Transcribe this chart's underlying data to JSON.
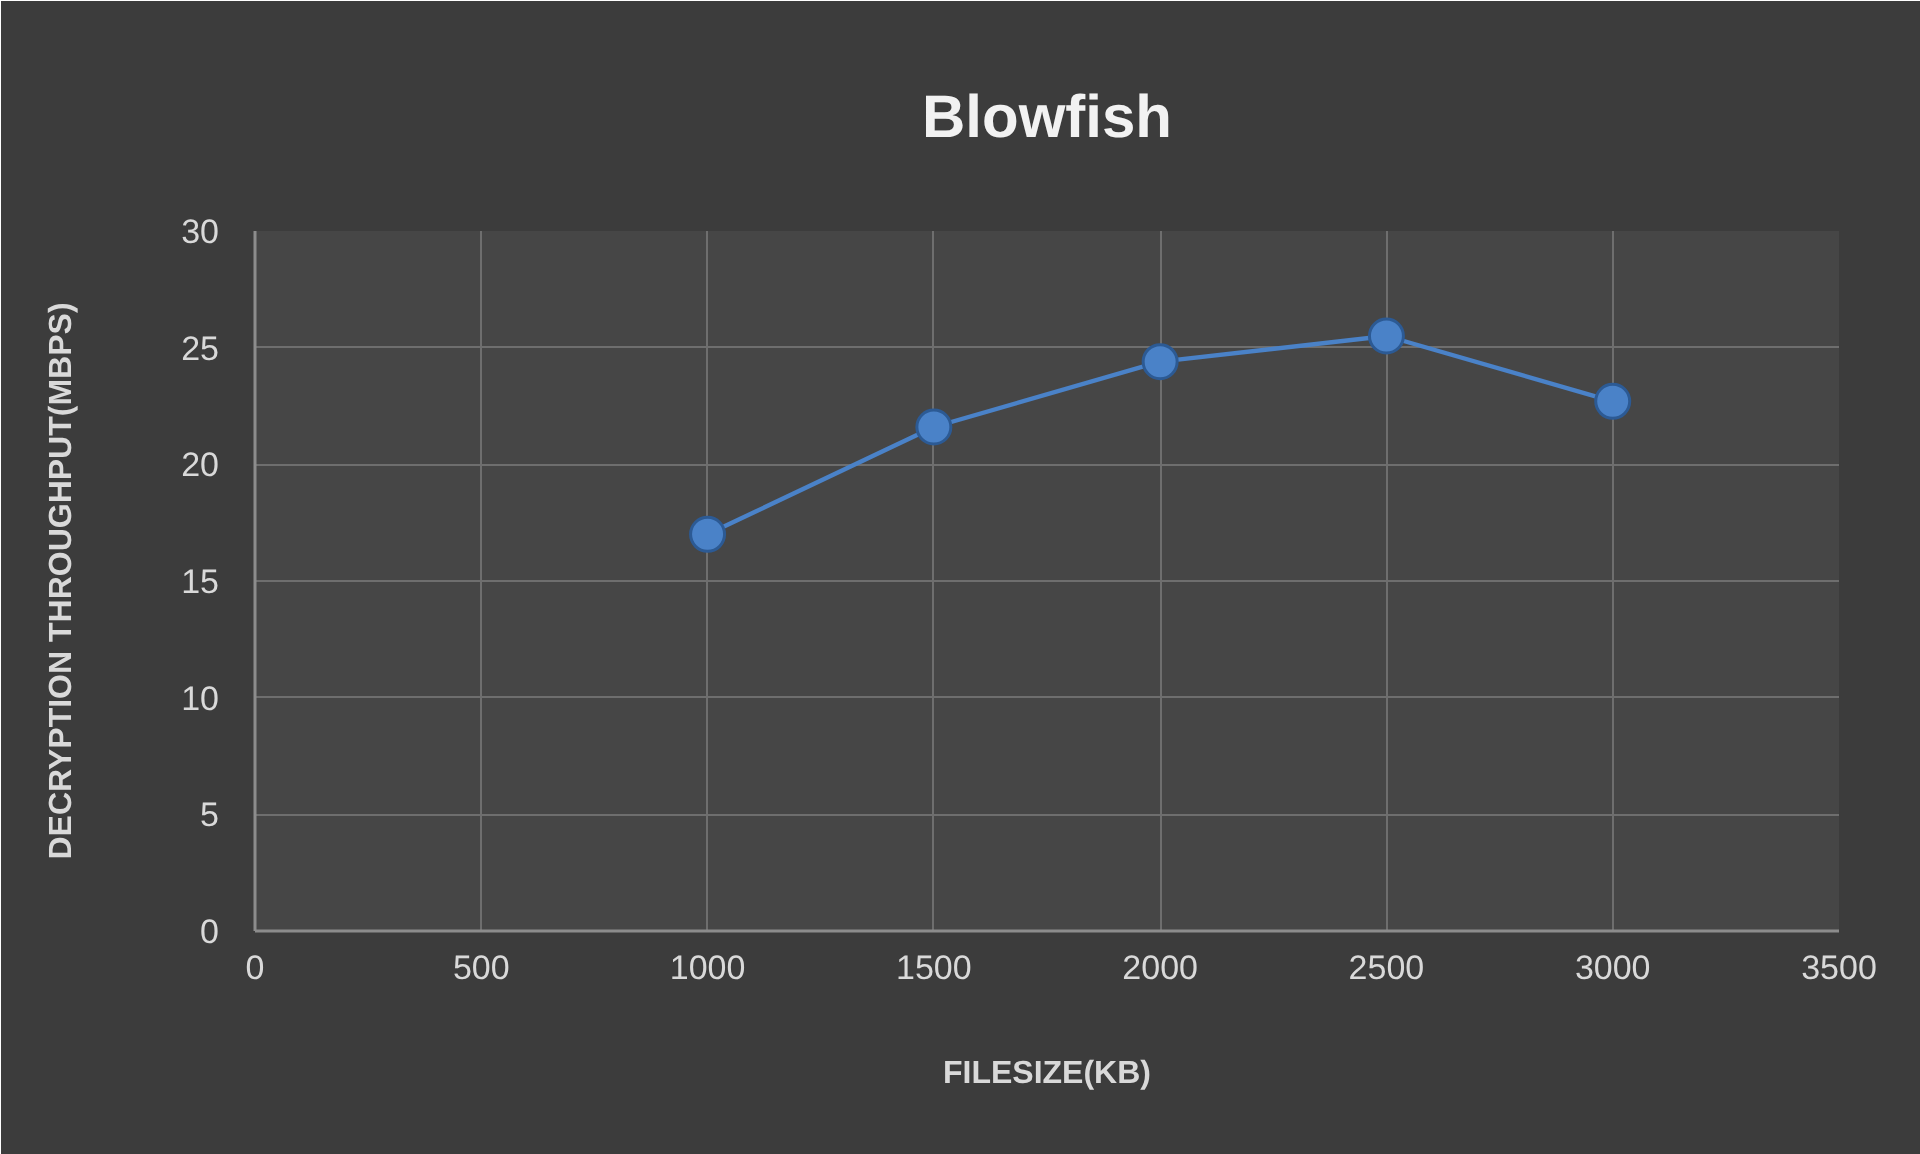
{
  "chart_data": {
    "type": "line",
    "title": "Blowfish",
    "xlabel": "FILESIZE(KB)",
    "ylabel": "DECRYPTION THROUGHPUT(MBPS)",
    "x": [
      1000,
      1500,
      2000,
      2500,
      3000
    ],
    "series": [
      {
        "color": "#4a82c8",
        "values": [
          17.0,
          21.6,
          24.4,
          25.5,
          22.7
        ]
      }
    ],
    "xlim": [
      0,
      3500
    ],
    "ylim": [
      0,
      30
    ],
    "xticks": [
      0,
      500,
      1000,
      1500,
      2000,
      2500,
      3000,
      3500
    ],
    "yticks": [
      0,
      5,
      10,
      15,
      20,
      25,
      30
    ],
    "grid": true,
    "marker": "circle",
    "line_style": "solid"
  }
}
